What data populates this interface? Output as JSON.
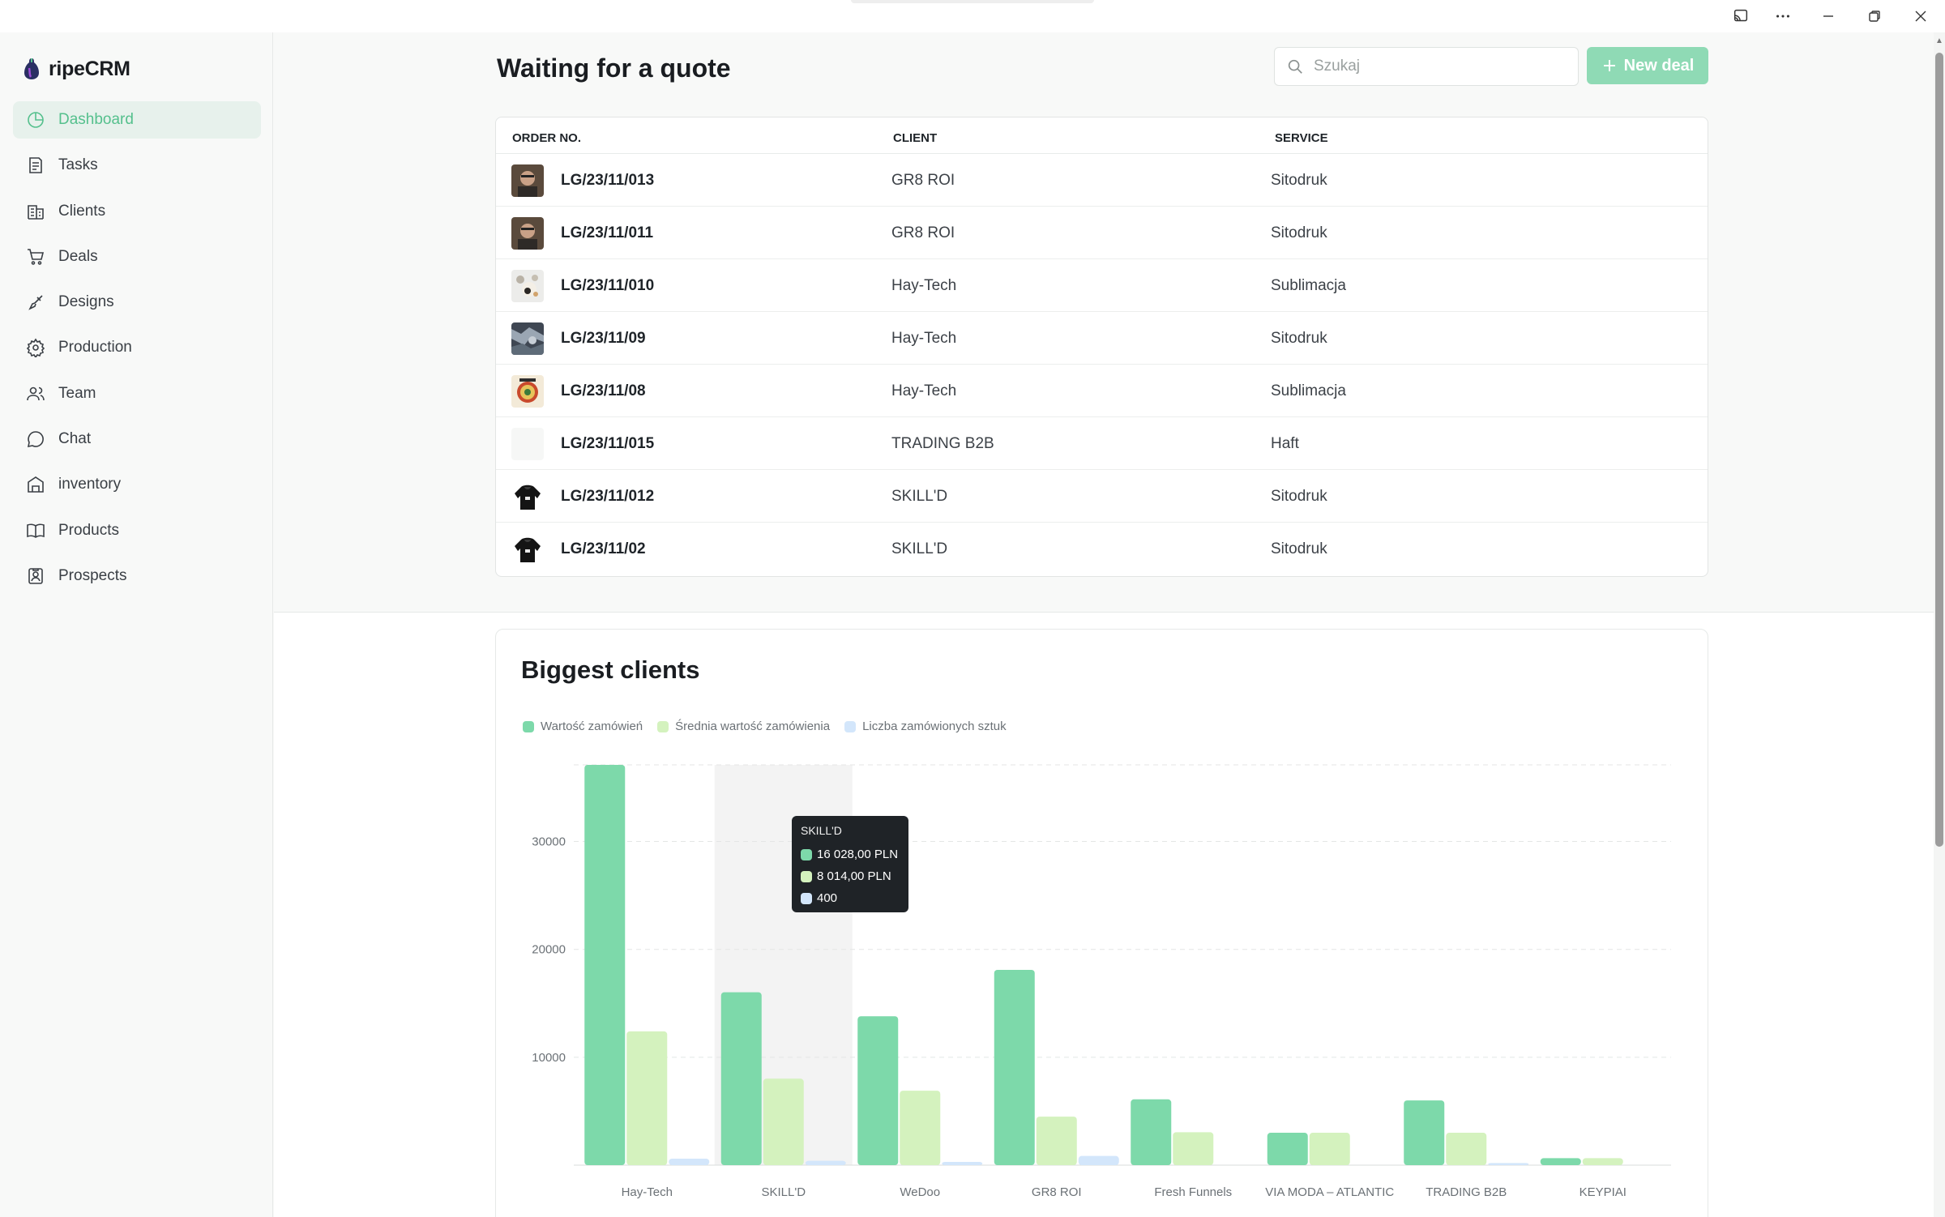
{
  "window": {
    "icons": [
      "cast-icon",
      "more-icon",
      "minimize-icon",
      "restore-icon",
      "close-icon"
    ]
  },
  "app": {
    "name": "ripeCRM",
    "accent": "#55c08d"
  },
  "sidebar": {
    "items": [
      {
        "label": "Dashboard",
        "icon": "dashboard-icon",
        "active": true
      },
      {
        "label": "Tasks",
        "icon": "tasks-icon"
      },
      {
        "label": "Clients",
        "icon": "clients-icon"
      },
      {
        "label": "Deals",
        "icon": "cart-icon"
      },
      {
        "label": "Designs",
        "icon": "brush-icon"
      },
      {
        "label": "Production",
        "icon": "gear-icon"
      },
      {
        "label": "Team",
        "icon": "team-icon"
      },
      {
        "label": "Chat",
        "icon": "chat-icon"
      },
      {
        "label": "inventory",
        "icon": "warehouse-icon"
      },
      {
        "label": "Products",
        "icon": "book-icon"
      },
      {
        "label": "Prospects",
        "icon": "contact-icon"
      }
    ]
  },
  "header": {
    "title": "Waiting for a quote",
    "search_placeholder": "Szukaj",
    "new_deal_label": "New deal"
  },
  "table": {
    "columns": [
      "ORDER NO.",
      "CLIENT",
      "SERVICE"
    ],
    "rows": [
      {
        "order": "LG/23/11/013",
        "client": "GR8 ROI",
        "service": "Sitodruk",
        "thumb": "portrait"
      },
      {
        "order": "LG/23/11/011",
        "client": "GR8 ROI",
        "service": "Sitodruk",
        "thumb": "portrait"
      },
      {
        "order": "LG/23/11/010",
        "client": "Hay-Tech",
        "service": "Sublimacja",
        "thumb": "pattern"
      },
      {
        "order": "LG/23/11/09",
        "client": "Hay-Tech",
        "service": "Sitodruk",
        "thumb": "camo"
      },
      {
        "order": "LG/23/11/08",
        "client": "Hay-Tech",
        "service": "Sublimacja",
        "thumb": "badge"
      },
      {
        "order": "LG/23/11/015",
        "client": "TRADING B2B",
        "service": "Haft",
        "thumb": "blank"
      },
      {
        "order": "LG/23/11/012",
        "client": "SKILL'D",
        "service": "Sitodruk",
        "thumb": "hoodie"
      },
      {
        "order": "LG/23/11/02",
        "client": "SKILL'D",
        "service": "Sitodruk",
        "thumb": "hoodie"
      }
    ]
  },
  "chart_section": {
    "title": "Biggest clients",
    "tooltip": {
      "title": "SKILL'D",
      "lines": [
        "16 028,00 PLN",
        "8 014,00 PLN",
        "400"
      ]
    }
  },
  "chart_data": {
    "type": "bar",
    "categories": [
      "Hay-Tech",
      "SKILL'D",
      "WeDoo",
      "GR8 ROI",
      "Fresh Funnels",
      "VIA MODA – ATLANTIC",
      "TRADING B2B",
      "KEYPIAI"
    ],
    "series": [
      {
        "name": "Wartość zamówień",
        "color": "#7dd9aa",
        "values": [
          37100,
          16028,
          13800,
          18100,
          6100,
          3000,
          6000,
          650
        ]
      },
      {
        "name": "Średnia wartość zamówienia",
        "color": "#d4f2be",
        "values": [
          12400,
          8014,
          6900,
          4500,
          3050,
          3000,
          3000,
          650
        ]
      },
      {
        "name": "Liczba zamówionych sztuk",
        "color": "#d3e6fb",
        "values": [
          600,
          400,
          300,
          850,
          0,
          0,
          200,
          0
        ]
      }
    ],
    "yticks": [
      10000,
      20000,
      30000
    ],
    "ylim": [
      0,
      37100
    ],
    "grid": true,
    "legend": "top-left",
    "highlight_category": "SKILL'D"
  }
}
